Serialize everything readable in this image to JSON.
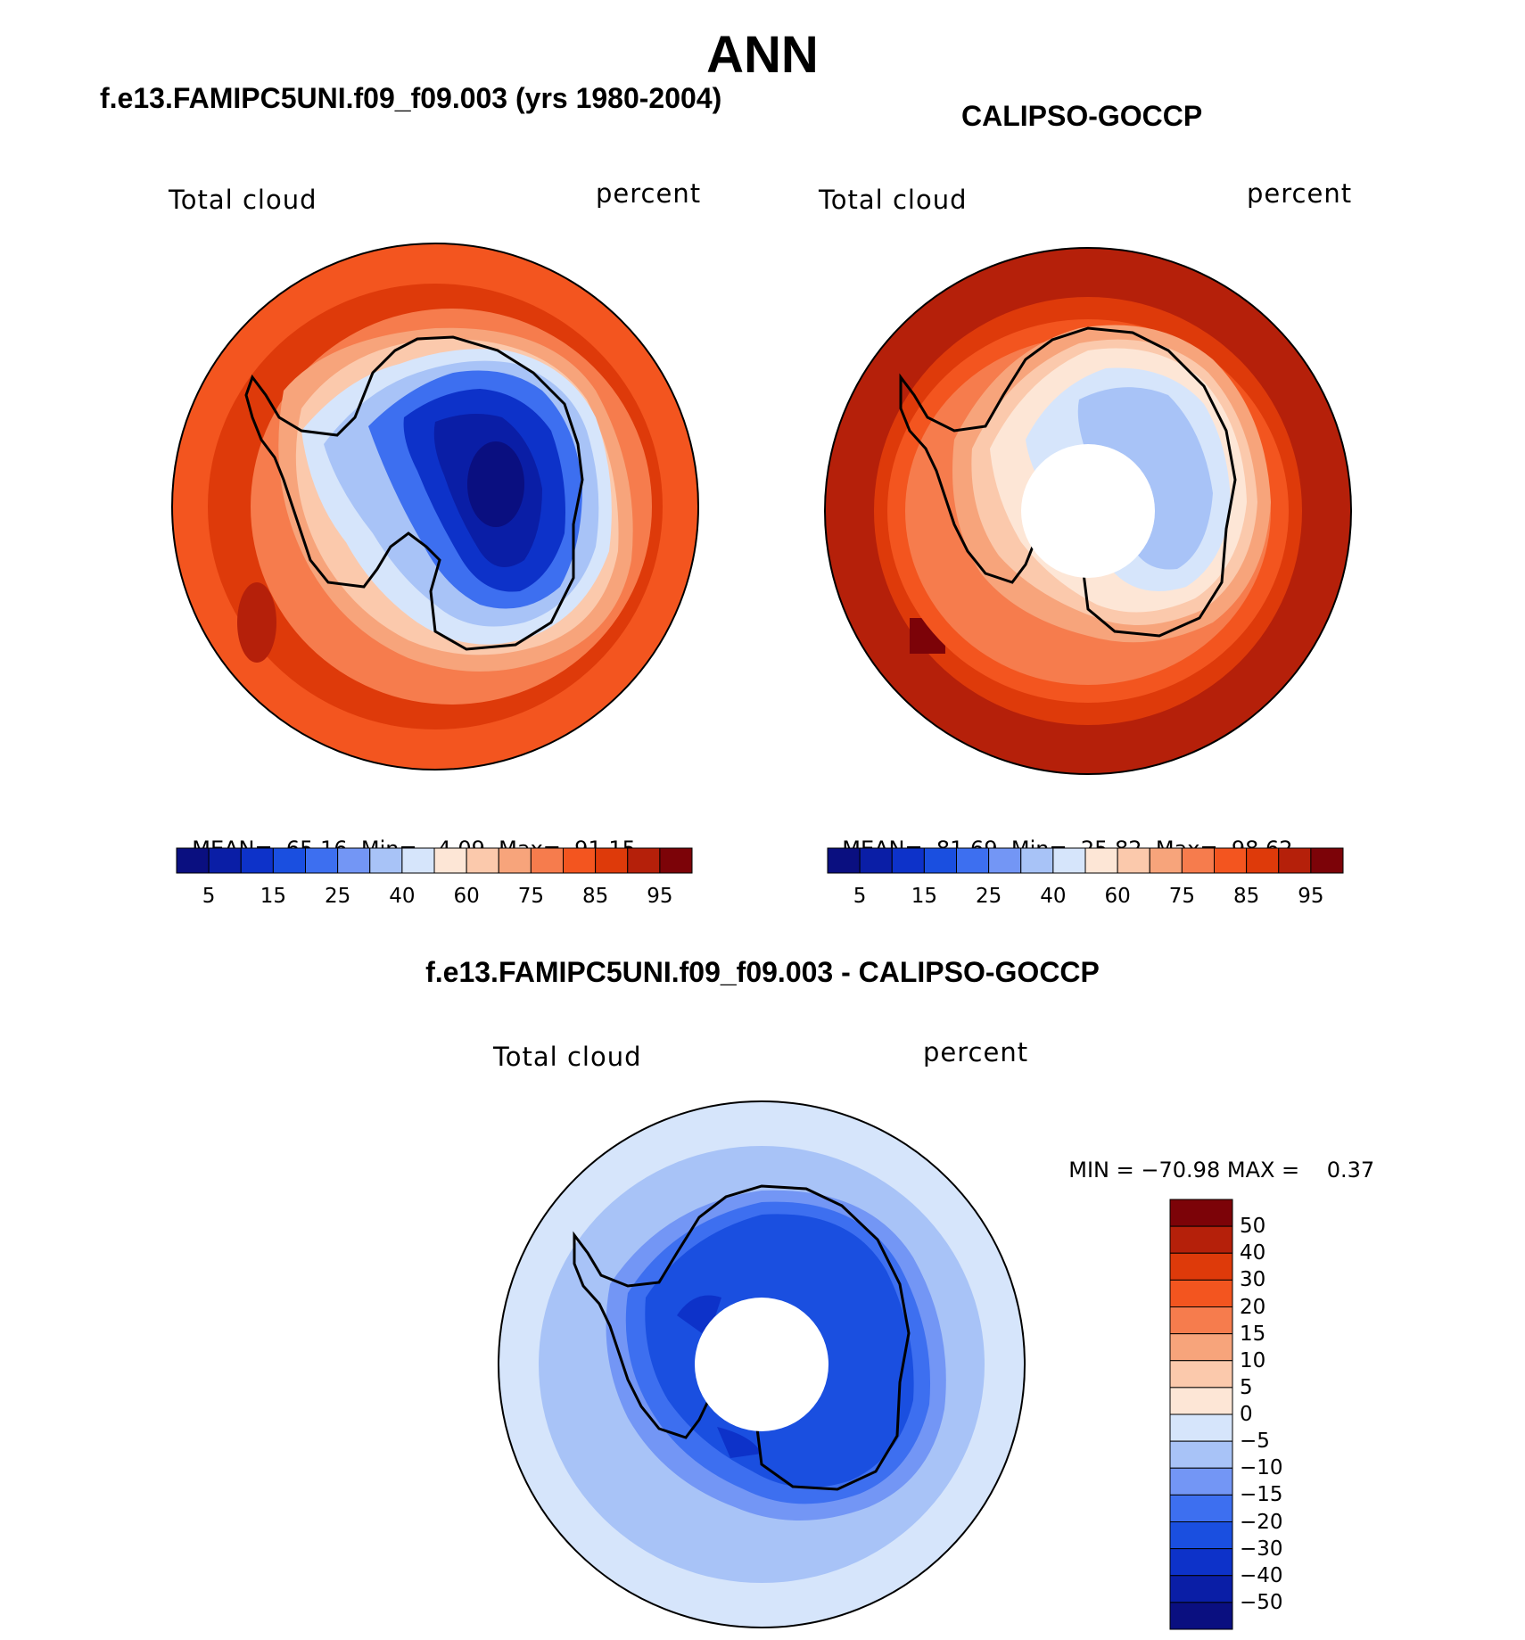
{
  "figure": {
    "season": "ANN"
  },
  "panels": {
    "model": {
      "title": "f.e13.FAMIPC5UNI.f09_f09.003 (yrs 1980-2004)",
      "variable": "Total cloud",
      "units": "percent",
      "stats": {
        "mean_label": "MEAN=",
        "mean": "65.16",
        "min_label": "Min=",
        "min": "4.09",
        "max_label": "Max=",
        "max": "91.15"
      }
    },
    "obs": {
      "title": "CALIPSO-GOCCP",
      "variable": "Total cloud",
      "units": "percent",
      "stats": {
        "mean_label": "MEAN=",
        "mean": "81.69",
        "min_label": "Min=",
        "min": "25.82",
        "max_label": "Max=",
        "max": "98.62"
      }
    },
    "diff": {
      "title": "f.e13.FAMIPC5UNI.f09_f09.003 - CALIPSO-GOCCP",
      "variable": "Total cloud",
      "units": "percent",
      "stats": {
        "min_label": "MIN =",
        "min": "−70.98",
        "max_label": "MAX =",
        "max": "0.37"
      }
    }
  },
  "colorbars": {
    "abs": {
      "colors": [
        "#0a0f80",
        "#0a1ea6",
        "#0d32c9",
        "#1a4fe0",
        "#3d6ff0",
        "#7396f5",
        "#a8c3f7",
        "#d6e5fb",
        "#fde6d6",
        "#fbc9ac",
        "#f7a47b",
        "#f67c4d",
        "#f3551f",
        "#de3a0a",
        "#b5200a",
        "#7c0308"
      ],
      "tick_labels": [
        "5",
        "15",
        "25",
        "40",
        "60",
        "75",
        "85",
        "95"
      ]
    },
    "diff": {
      "colors": [
        "#0a0f80",
        "#0a1ea6",
        "#0d32c9",
        "#1a4fe0",
        "#3d6ff0",
        "#7396f5",
        "#a8c3f7",
        "#d6e5fb",
        "#fde6d6",
        "#fbc9ac",
        "#f7a47b",
        "#f67c4d",
        "#f3551f",
        "#de3a0a",
        "#b5200a",
        "#7c0308"
      ],
      "tick_labels": [
        "50",
        "40",
        "30",
        "20",
        "15",
        "10",
        "5",
        "0",
        "−5",
        "−10",
        "−15",
        "−20",
        "−30",
        "−40",
        "−50"
      ]
    }
  },
  "map_colors": {
    "model": {
      "ocean_outer": "#f3551f",
      "ocean_mid": "#de3a0a",
      "ring_1": "#f67c4d",
      "ring_2": "#f7a47b",
      "ring_3": "#fbc9ac",
      "coast": "#d6e5fb",
      "interior_1": "#a8c3f7",
      "interior_2": "#3d6ff0",
      "interior_3": "#0d32c9",
      "interior_4": "#0a1ea6",
      "core": "#0a0f80",
      "hot_patch": "#b5200a"
    },
    "obs": {
      "ocean_outer": "#de3a0a",
      "ocean_dark": "#b5200a",
      "ring_1": "#f3551f",
      "ring_2": "#f67c4d",
      "ring_3": "#f7a47b",
      "ring_4": "#fbc9ac",
      "coast": "#fde6d6",
      "interior_1": "#d6e5fb",
      "interior_2": "#a8c3f7",
      "hot_patch": "#7c0308",
      "hole": "#ffffff"
    },
    "diff": {
      "ocean_outer": "#d6e5fb",
      "ocean_mid": "#a8c3f7",
      "ring_1": "#7396f5",
      "ring_2": "#3d6ff0",
      "interior_1": "#1a4fe0",
      "interior_2": "#0d32c9",
      "hole": "#ffffff"
    }
  }
}
